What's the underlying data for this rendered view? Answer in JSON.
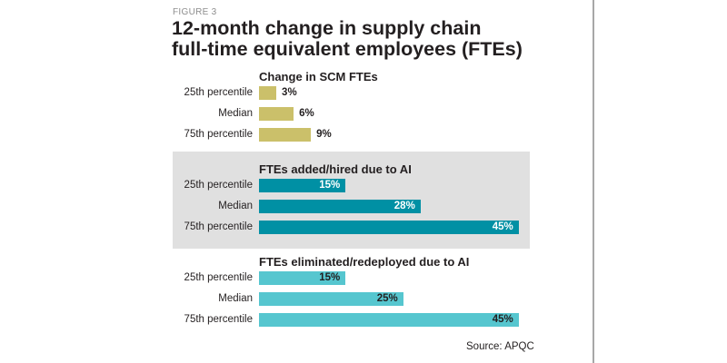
{
  "figure_label": "FIGURE 3",
  "title_line1": "12-month change in supply chain",
  "title_line2": "full-time equivalent employees (FTEs)",
  "source": "Source: APQC",
  "colors": {
    "scm": "#cbc06a",
    "added": "#0090a4",
    "eliminated": "#56c6cf",
    "panel": "#e0e0e0"
  },
  "chart_data": {
    "type": "bar",
    "orientation": "horizontal",
    "title": "12-month change in supply chain full-time equivalent employees (FTEs)",
    "xlabel": "",
    "ylabel": "",
    "grid": false,
    "categories": [
      "25th percentile",
      "Median",
      "75th percentile"
    ],
    "series": [
      {
        "name": "Change in SCM FTEs",
        "values": [
          3,
          6,
          9
        ],
        "labels": [
          "3%",
          "6%",
          "9%"
        ],
        "label_position": "outside",
        "color_key": "scm"
      },
      {
        "name": "FTEs added/hired due to AI",
        "values": [
          15,
          28,
          45
        ],
        "labels": [
          "15%",
          "28%",
          "45%"
        ],
        "label_position": "inside",
        "color_key": "added",
        "highlighted": true
      },
      {
        "name": "FTEs eliminated/redeployed due to AI",
        "values": [
          15,
          25,
          45
        ],
        "labels": [
          "15%",
          "25%",
          "45%"
        ],
        "label_position": "inside",
        "color_key": "eliminated"
      }
    ],
    "unit": "%",
    "xlim": [
      0,
      45
    ]
  }
}
